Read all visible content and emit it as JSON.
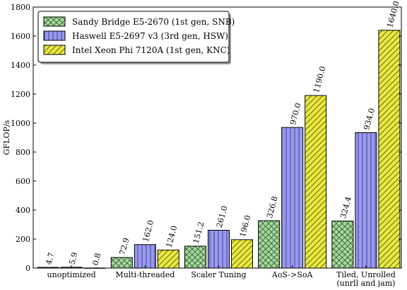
{
  "chart_data": {
    "type": "bar",
    "ylabel": "GFLOP/s",
    "ylim": [
      0,
      1800
    ],
    "yticks": [
      0,
      200,
      400,
      600,
      800,
      1000,
      1200,
      1400,
      1600,
      1800
    ],
    "grid": false,
    "legend_position": "top-left",
    "categories": [
      "unoptimized",
      "Multi-threaded",
      "Scaler Tuning",
      "AoS->SoA",
      "Tiled, Unrolled\n(unrll and jam)"
    ],
    "series": [
      {
        "name": "Sandy Bridge E5-2670 (1st gen, SNB)",
        "values": [
          4.7,
          72.9,
          151.2,
          326.8,
          324.4
        ],
        "labels": [
          "4.7",
          "72.9",
          "151.2",
          "326.8",
          "324.4"
        ],
        "color": "#a8d8a0",
        "hatch": "crosshatch"
      },
      {
        "name": "Haswell E5-2697 v3 (3rd gen, HSW)",
        "values": [
          5.9,
          162.0,
          261.0,
          970.0,
          934.0
        ],
        "labels": [
          "5.9",
          "162.0",
          "261.0",
          "970.0",
          "934.0"
        ],
        "color": "#9999ee",
        "hatch": "vertical"
      },
      {
        "name": "Intel Xeon Phi 7120A (1st gen, KNC)",
        "values": [
          0.8,
          124.0,
          196.0,
          1190.0,
          1640.0
        ],
        "labels": [
          "0.8",
          "124.0",
          "196.0",
          "1190.0",
          "1640.0"
        ],
        "color": "#e8e840",
        "hatch": "diagonal"
      }
    ]
  }
}
